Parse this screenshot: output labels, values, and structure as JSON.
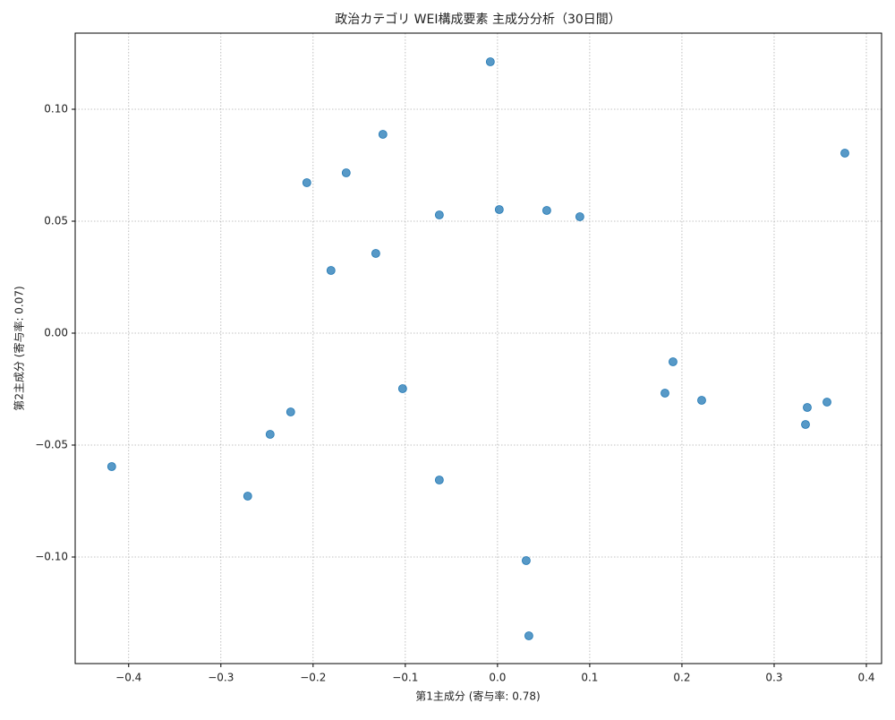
{
  "chart_data": {
    "type": "scatter",
    "title": "政治カテゴリ WEI構成要素 主成分分析（30日間）",
    "x_label": "第1主成分 (寄与率: 0.78)",
    "y_label": "第2主成分 (寄与率: 0.07)",
    "xlim": [
      -0.458,
      0.4165
    ],
    "ylim": [
      -0.1476,
      0.134
    ],
    "xticks": [
      {
        "value": -0.4,
        "label": "−0.4"
      },
      {
        "value": -0.3,
        "label": "−0.3"
      },
      {
        "value": -0.2,
        "label": "−0.2"
      },
      {
        "value": -0.1,
        "label": "−0.1"
      },
      {
        "value": 0,
        "label": "0.0"
      },
      0.1,
      0.2,
      0.3,
      0.4
    ],
    "yticks": [
      {
        "value": -0.1,
        "label": "−0.10"
      },
      {
        "value": -0.05,
        "label": "−0.05"
      },
      {
        "value": 0,
        "label": "0.00"
      },
      0.05,
      {
        "value": 0.1,
        "label": "0.10"
      }
    ],
    "grid": true,
    "color": "#1f77b4",
    "x": [
      -0.0078,
      -0.1243,
      0.3767,
      -0.1641,
      -0.2068,
      -0.0631,
      0.0019,
      0.0534,
      0.0893,
      -0.132,
      -0.1806,
      0.1903,
      0.1816,
      0.2214,
      0.3573,
      0.3359,
      0.334,
      -0.1029,
      -0.2243,
      -0.2466,
      -0.4184,
      -0.2709,
      -0.0631,
      0.0311,
      0.034
    ],
    "values": [
      0.1212,
      0.0888,
      0.0804,
      0.0716,
      0.0672,
      0.0528,
      0.0552,
      0.0548,
      0.052,
      0.0356,
      0.028,
      -0.0128,
      -0.0268,
      -0.03,
      -0.0308,
      -0.0332,
      -0.0408,
      -0.0248,
      -0.0352,
      -0.0452,
      -0.0596,
      -0.0728,
      -0.0656,
      -0.1016,
      -0.1352
    ]
  }
}
